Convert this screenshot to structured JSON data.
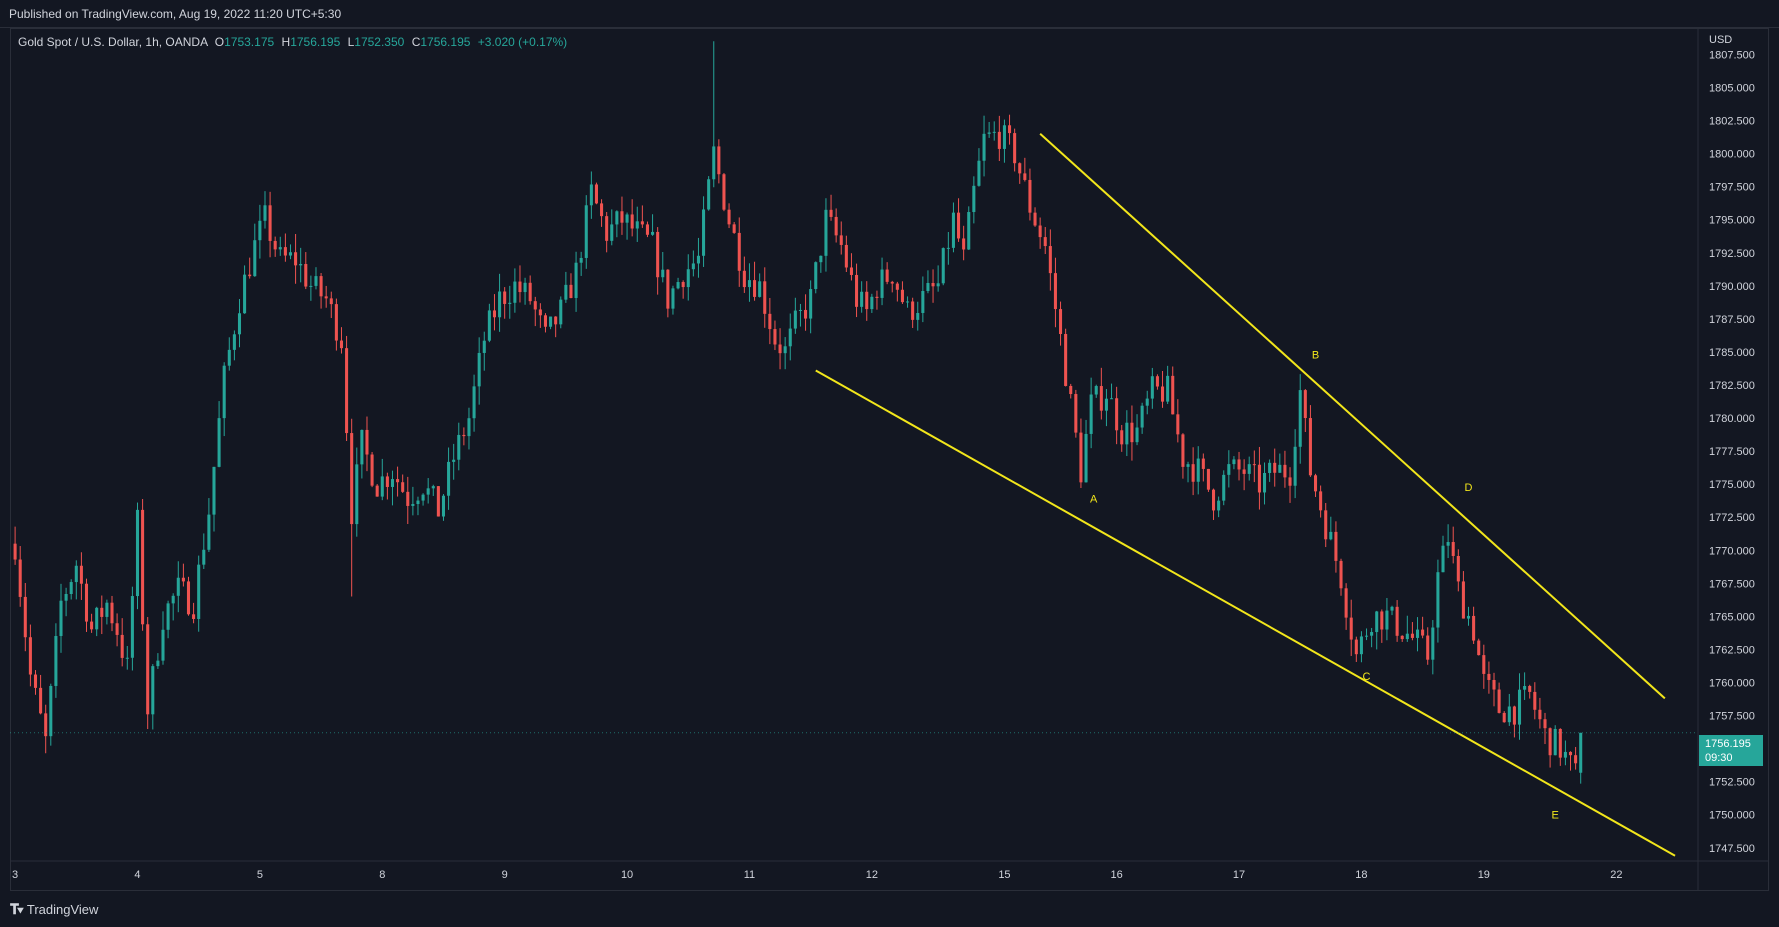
{
  "header": {
    "published_text": "Published on TradingView.com, Aug 19, 2022 11:20 UTC+5:30"
  },
  "legend": {
    "symbol": "Gold Spot / U.S. Dollar, 1h, OANDA",
    "open_label": "O",
    "open": "1753.175",
    "high_label": "H",
    "high": "1756.195",
    "low_label": "L",
    "low": "1752.350",
    "close_label": "C",
    "close": "1756.195",
    "change": "+3.020 (+0.17%)"
  },
  "price_axis": {
    "currency": "USD"
  },
  "last_price": {
    "price": "1756.195",
    "countdown": "09:30"
  },
  "footer": {
    "brand": "TradingView"
  },
  "colors": {
    "background": "#131722",
    "up": "#26a69a",
    "down": "#ef5350",
    "drawing": "#f2e61b",
    "grid_text": "#d1d4dc"
  },
  "chart_data": {
    "type": "candlestick",
    "title": "Gold Spot / U.S. Dollar, 1h, OANDA",
    "y_unit": "USD",
    "ylim": [
      1746.5,
      1809.5
    ],
    "grid": false,
    "y_ticks": [
      "1807.500",
      "1805.000",
      "1802.500",
      "1800.000",
      "1797.500",
      "1795.000",
      "1792.500",
      "1790.000",
      "1787.500",
      "1785.000",
      "1782.500",
      "1780.000",
      "1777.500",
      "1775.000",
      "1772.500",
      "1770.000",
      "1767.500",
      "1765.000",
      "1762.500",
      "1760.000",
      "1757.500",
      "1752.500",
      "1750.000",
      "1747.500"
    ],
    "x_ticks": [
      {
        "label": "3",
        "bar": 0
      },
      {
        "label": "4",
        "bar": 24
      },
      {
        "label": "5",
        "bar": 48
      },
      {
        "label": "8",
        "bar": 72
      },
      {
        "label": "9",
        "bar": 96
      },
      {
        "label": "10",
        "bar": 120
      },
      {
        "label": "11",
        "bar": 144
      },
      {
        "label": "12",
        "bar": 168
      },
      {
        "label": "15",
        "bar": 194
      },
      {
        "label": "16",
        "bar": 216
      },
      {
        "label": "17",
        "bar": 240
      },
      {
        "label": "18",
        "bar": 264
      },
      {
        "label": "19",
        "bar": 288
      },
      {
        "label": "22",
        "bar": 314
      }
    ],
    "x_range_bars": [
      -1,
      330
    ],
    "price_anchors": [
      [
        0,
        1770.5
      ],
      [
        3,
        1760.5
      ],
      [
        6,
        1755.5
      ],
      [
        9,
        1766
      ],
      [
        12,
        1769
      ],
      [
        15,
        1764
      ],
      [
        18,
        1766
      ],
      [
        20,
        1764
      ],
      [
        22,
        1761
      ],
      [
        24,
        1772
      ],
      [
        26,
        1758
      ],
      [
        29,
        1765
      ],
      [
        32,
        1767
      ],
      [
        35,
        1766
      ],
      [
        38,
        1773
      ],
      [
        41,
        1783
      ],
      [
        44,
        1789
      ],
      [
        47,
        1793
      ],
      [
        49,
        1795
      ],
      [
        52,
        1792
      ],
      [
        55,
        1792
      ],
      [
        58,
        1790
      ],
      [
        61,
        1789
      ],
      [
        64,
        1786
      ],
      [
        66,
        1773
      ],
      [
        68,
        1778
      ],
      [
        71,
        1775
      ],
      [
        74,
        1776
      ],
      [
        77,
        1774
      ],
      [
        80,
        1775
      ],
      [
        83,
        1773
      ],
      [
        86,
        1777
      ],
      [
        89,
        1780
      ],
      [
        92,
        1786
      ],
      [
        95,
        1789
      ],
      [
        98,
        1790
      ],
      [
        101,
        1789
      ],
      [
        104,
        1786
      ],
      [
        107,
        1788
      ],
      [
        110,
        1791
      ],
      [
        113,
        1797
      ],
      [
        116,
        1794
      ],
      [
        119,
        1795
      ],
      [
        122,
        1794
      ],
      [
        125,
        1793
      ],
      [
        128,
        1789
      ],
      [
        131,
        1791
      ],
      [
        134,
        1792
      ],
      [
        137,
        1800
      ],
      [
        140,
        1795
      ],
      [
        143,
        1791
      ],
      [
        146,
        1790
      ],
      [
        149,
        1786
      ],
      [
        151,
        1785
      ],
      [
        153,
        1787
      ],
      [
        156,
        1789
      ],
      [
        159,
        1795
      ],
      [
        162,
        1793
      ],
      [
        165,
        1789
      ],
      [
        167,
        1788
      ],
      [
        169,
        1790
      ],
      [
        172,
        1791
      ],
      [
        175,
        1788
      ],
      [
        178,
        1789
      ],
      [
        181,
        1790
      ],
      [
        184,
        1795
      ],
      [
        186,
        1792
      ],
      [
        188,
        1797
      ],
      [
        190,
        1801
      ],
      [
        193,
        1801.5
      ],
      [
        196,
        1800
      ],
      [
        199,
        1796
      ],
      [
        202,
        1793
      ],
      [
        205,
        1786
      ],
      [
        207,
        1781
      ],
      [
        209,
        1776
      ],
      [
        211,
        1781
      ],
      [
        214,
        1782
      ],
      [
        217,
        1779
      ],
      [
        220,
        1779
      ],
      [
        223,
        1782
      ],
      [
        226,
        1782
      ],
      [
        229,
        1777
      ],
      [
        232,
        1776
      ],
      [
        235,
        1774
      ],
      [
        238,
        1776
      ],
      [
        241,
        1776
      ],
      [
        244,
        1775
      ],
      [
        247,
        1776
      ],
      [
        250,
        1776
      ],
      [
        252,
        1782
      ],
      [
        254,
        1776
      ],
      [
        257,
        1772
      ],
      [
        260,
        1768
      ],
      [
        263,
        1762
      ],
      [
        266,
        1765
      ],
      [
        269,
        1765
      ],
      [
        272,
        1764
      ],
      [
        275,
        1763
      ],
      [
        277,
        1762
      ],
      [
        279,
        1768
      ],
      [
        281,
        1771
      ],
      [
        283,
        1767
      ],
      [
        286,
        1764
      ],
      [
        288,
        1760
      ],
      [
        291,
        1758
      ],
      [
        294,
        1758
      ],
      [
        297,
        1759
      ],
      [
        300,
        1756
      ],
      [
        303,
        1755
      ],
      [
        306,
        1753
      ],
      [
        307,
        1756.2
      ]
    ],
    "drawings": [
      {
        "name": "upper-trendline",
        "points": [
          [
            201,
            1801.5
          ],
          [
            323.5,
            1758.8
          ]
        ]
      },
      {
        "name": "lower-trendline",
        "points": [
          [
            157,
            1783.6
          ],
          [
            325.5,
            1746.9
          ]
        ]
      }
    ],
    "wave_labels": [
      {
        "label": "A",
        "bar": 211.5,
        "price": 1773.6
      },
      {
        "label": "B",
        "bar": 255,
        "price": 1784.5
      },
      {
        "label": "C",
        "bar": 265,
        "price": 1760.2
      },
      {
        "label": "D",
        "bar": 285,
        "price": 1774.5
      },
      {
        "label": "E",
        "bar": 302,
        "price": 1749.7
      }
    ],
    "last_candle": {
      "open": 1753.175,
      "high": 1756.195,
      "low": 1752.35,
      "close": 1756.195
    }
  }
}
